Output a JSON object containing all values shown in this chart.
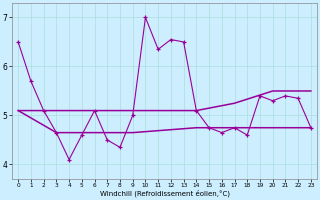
{
  "x": [
    0,
    1,
    2,
    3,
    4,
    5,
    6,
    7,
    8,
    9,
    10,
    11,
    12,
    13,
    14,
    15,
    16,
    17,
    18,
    19,
    20,
    21,
    22,
    23
  ],
  "line1": [
    6.5,
    5.7,
    5.1,
    4.65,
    4.1,
    4.6,
    5.1,
    4.5,
    4.35,
    5.0,
    7.0,
    6.35,
    6.55,
    6.5,
    5.1,
    4.75,
    4.65,
    4.75,
    4.6,
    5.4,
    5.3,
    5.4,
    5.35,
    4.75
  ],
  "line2_x": [
    0,
    6,
    9,
    14,
    17,
    20,
    23
  ],
  "line2_y": [
    5.1,
    5.1,
    5.1,
    5.1,
    5.25,
    5.5,
    5.5
  ],
  "line3_x": [
    0,
    3,
    9,
    14,
    23
  ],
  "line3_y": [
    5.1,
    4.65,
    4.65,
    4.75,
    4.75
  ],
  "line_color": "#990099",
  "bg_color": "#cceeff",
  "grid_color": "#aadddd",
  "xlabel": "Windchill (Refroidissement éolien,°C)",
  "ylim": [
    3.7,
    7.3
  ],
  "xlim": [
    -0.5,
    23.5
  ],
  "yticks": [
    4,
    5,
    6,
    7
  ],
  "xticks": [
    0,
    1,
    2,
    3,
    4,
    5,
    6,
    7,
    8,
    9,
    10,
    11,
    12,
    13,
    14,
    15,
    16,
    17,
    18,
    19,
    20,
    21,
    22,
    23
  ]
}
